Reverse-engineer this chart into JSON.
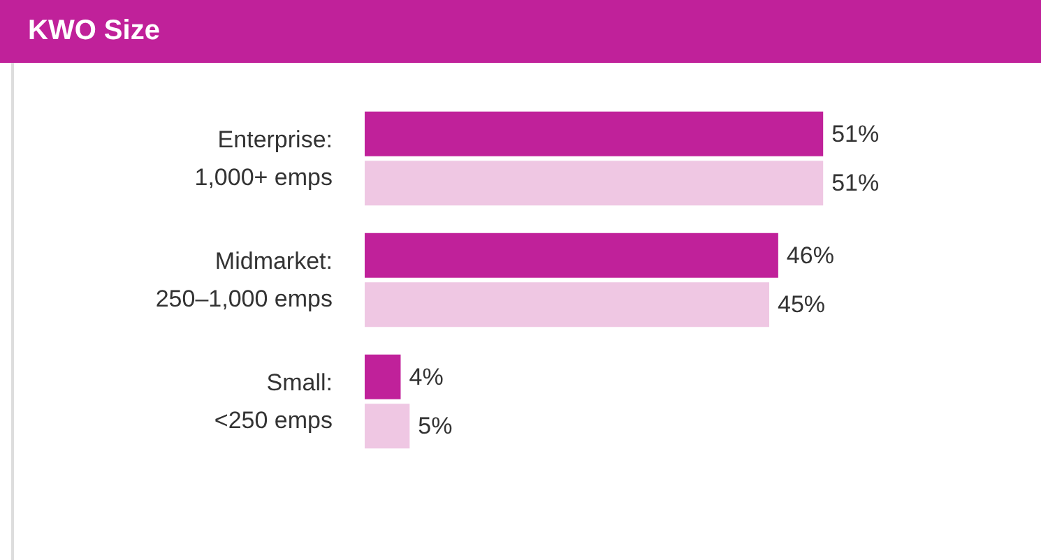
{
  "chart_data": {
    "type": "bar",
    "title": "KWO Size",
    "orientation": "horizontal",
    "categories": [
      "Enterprise:\n1,000+ emps",
      "Midmarket:\n250–1,000 emps",
      "Small:\n<250 emps"
    ],
    "series": [
      {
        "color": "#c0219a",
        "values": [
          51,
          46,
          4
        ],
        "value_labels": [
          "51%",
          "46%",
          "4%"
        ]
      },
      {
        "color": "#efc7e3",
        "values": [
          51,
          45,
          5
        ],
        "value_labels": [
          "51%",
          "45%",
          "5%"
        ]
      }
    ]
  }
}
